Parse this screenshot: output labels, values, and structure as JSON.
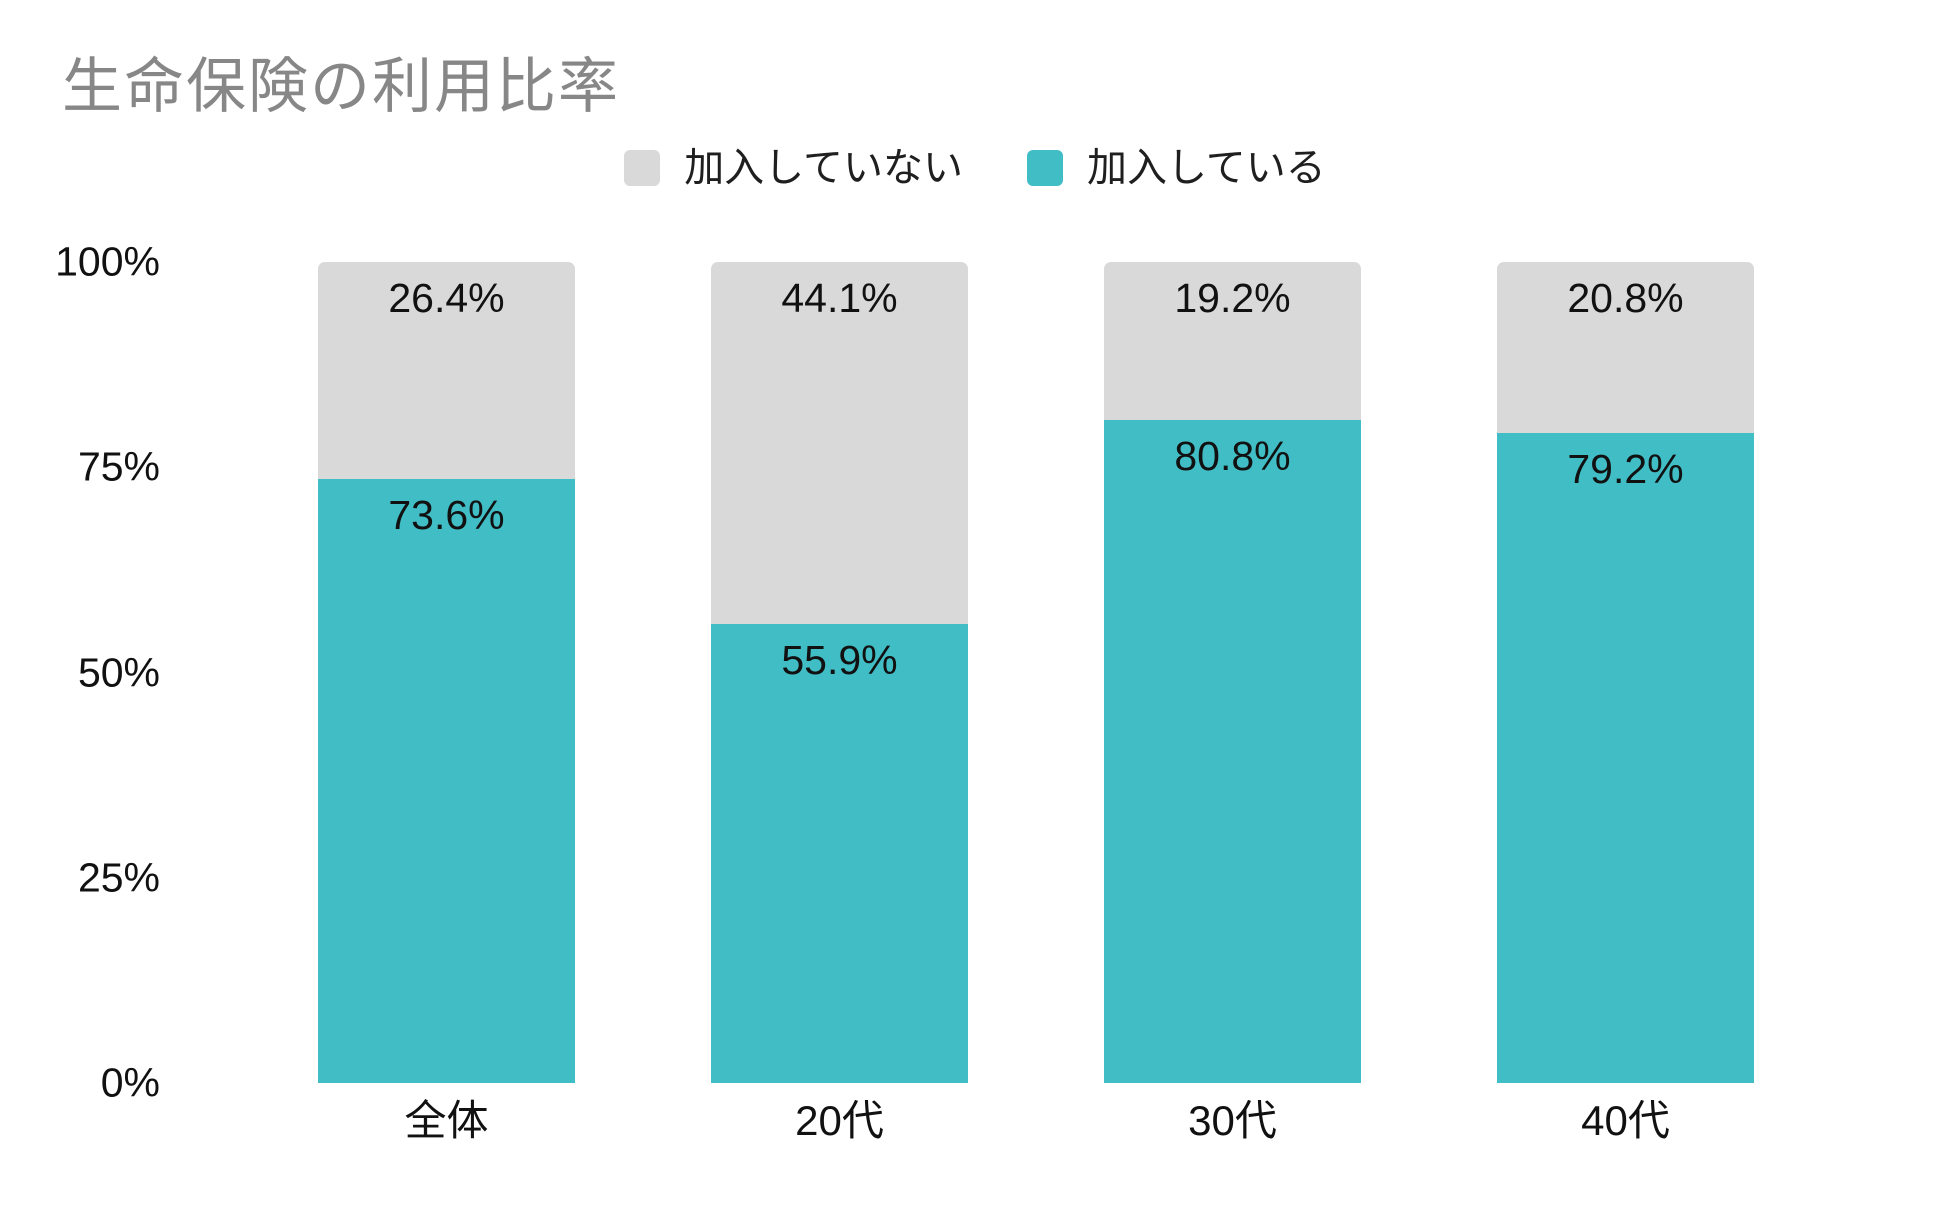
{
  "title": "生命保険の利用比率",
  "legend": {
    "items": [
      {
        "label": "加入していない",
        "color": "#d9d9d9"
      },
      {
        "label": "加入している",
        "color": "#41bdc5"
      }
    ]
  },
  "colors": {
    "joined": "#41bdc5",
    "not_joined": "#d9d9d9",
    "title_text": "#878787",
    "label_text": "#111111",
    "background": "#ffffff"
  },
  "chart_data": {
    "type": "bar",
    "stacked": true,
    "title": "生命保険の利用比率",
    "categories": [
      "全体",
      "20代",
      "30代",
      "40代"
    ],
    "series": [
      {
        "name": "加入している",
        "color": "#41bdc5",
        "values": [
          73.6,
          55.9,
          80.8,
          79.2
        ],
        "labels": [
          "73.6%",
          "55.9%",
          "80.8%",
          "79.2%"
        ]
      },
      {
        "name": "加入していない",
        "color": "#d9d9d9",
        "values": [
          26.4,
          44.1,
          19.2,
          20.8
        ],
        "labels": [
          "26.4%",
          "44.1%",
          "19.2%",
          "20.8%"
        ]
      }
    ],
    "value_suffix": "%",
    "ylabel": "",
    "xlabel": "",
    "ylim": [
      0,
      100
    ],
    "y_ticks": [
      "100%",
      "75%",
      "50%",
      "25%",
      "0%"
    ],
    "grid": false,
    "legend_position": "top-center"
  }
}
